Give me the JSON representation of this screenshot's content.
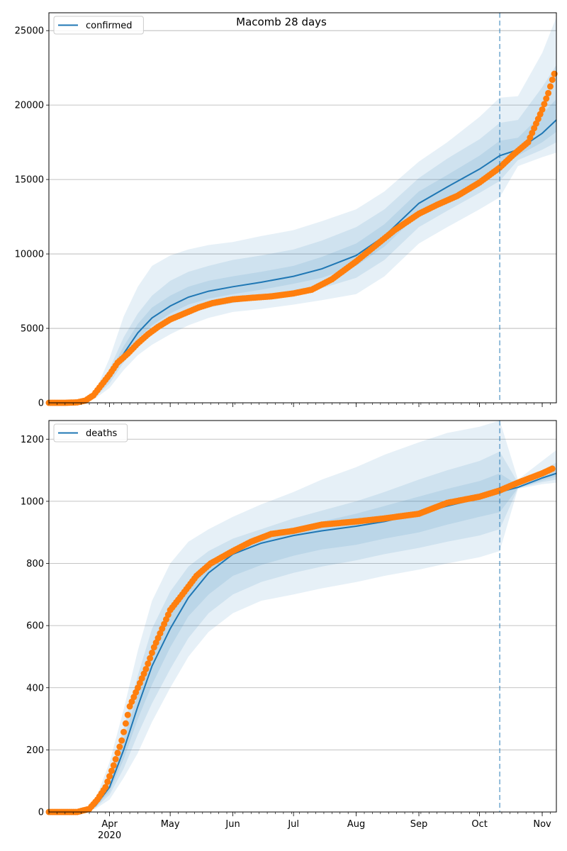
{
  "title": "Macomb 28 days",
  "colors": {
    "line": "#1f77b4",
    "band": "#1f77b4",
    "observed": "#ff7f0e",
    "grid": "#b0b0b0",
    "vline": "#1f77b4"
  },
  "chart_data": [
    {
      "type": "line",
      "panel": "top",
      "title": "Macomb 28 days",
      "legend": {
        "label": "confirmed",
        "position": "top-left"
      },
      "grid": "horizontal",
      "x_range": [
        "2020-03-02",
        "2020-11-08"
      ],
      "y_range": [
        0,
        26200
      ],
      "y_ticks": [
        0,
        5000,
        10000,
        15000,
        20000,
        25000
      ],
      "forecast_start": "2020-10-11",
      "model": {
        "name": "confirmed",
        "x": [
          "2020-03-02",
          "2020-03-15",
          "2020-03-20",
          "2020-03-25",
          "2020-04-01",
          "2020-04-08",
          "2020-04-15",
          "2020-04-22",
          "2020-05-01",
          "2020-05-10",
          "2020-05-20",
          "2020-06-01",
          "2020-06-15",
          "2020-07-01",
          "2020-07-15",
          "2020-08-01",
          "2020-08-15",
          "2020-09-01",
          "2020-09-15",
          "2020-10-01",
          "2020-10-11",
          "2020-10-20",
          "2020-11-01",
          "2020-11-08"
        ],
        "y": [
          0,
          40,
          150,
          500,
          1700,
          3300,
          4700,
          5700,
          6500,
          7100,
          7500,
          7800,
          8100,
          8500,
          9000,
          9900,
          11200,
          13400,
          14500,
          15700,
          16600,
          17000,
          18100,
          19000
        ]
      },
      "bands": [
        {
          "level": "outer",
          "lower": [
            0,
            30,
            100,
            300,
            1000,
            2200,
            3200,
            3900,
            4600,
            5200,
            5700,
            6100,
            6300,
            6600,
            6900,
            7300,
            8500,
            10700,
            11800,
            13000,
            13800,
            15900,
            16500,
            16800
          ],
          "upper": [
            0,
            60,
            250,
            800,
            3000,
            5800,
            7800,
            9200,
            9900,
            10300,
            10600,
            10800,
            11200,
            11600,
            12200,
            13000,
            14200,
            16200,
            17500,
            19200,
            20500,
            20600,
            23500,
            25900
          ]
        },
        {
          "level": "middle",
          "lower": [
            0,
            35,
            120,
            380,
            1300,
            2700,
            3900,
            4700,
            5400,
            6000,
            6400,
            6700,
            7000,
            7300,
            7700,
            8400,
            9600,
            11800,
            12900,
            14100,
            14900,
            16300,
            17000,
            17500
          ],
          "upper": [
            0,
            50,
            200,
            650,
            2300,
            4400,
            6000,
            7200,
            8200,
            8800,
            9200,
            9600,
            9900,
            10300,
            10900,
            11800,
            13000,
            15100,
            16400,
            17700,
            18800,
            19000,
            21200,
            22700
          ]
        },
        {
          "level": "inner",
          "lower": [
            0,
            38,
            135,
            440,
            1500,
            3000,
            4300,
            5200,
            6000,
            6600,
            7000,
            7300,
            7600,
            8000,
            8400,
            9200,
            10500,
            12700,
            13800,
            14900,
            15800,
            16600,
            17500,
            18200
          ],
          "upper": [
            0,
            45,
            175,
            580,
            2000,
            3800,
            5300,
            6400,
            7200,
            7800,
            8200,
            8500,
            8800,
            9200,
            9800,
            10700,
            12000,
            14200,
            15300,
            16600,
            17600,
            17800,
            19400,
            20400
          ]
        }
      ],
      "observed": {
        "x": [
          "2020-03-02",
          "2020-03-10",
          "2020-03-16",
          "2020-03-20",
          "2020-03-24",
          "2020-03-28",
          "2020-04-01",
          "2020-04-05",
          "2020-04-10",
          "2020-04-15",
          "2020-04-20",
          "2020-04-25",
          "2020-05-01",
          "2020-05-08",
          "2020-05-15",
          "2020-05-22",
          "2020-06-01",
          "2020-06-10",
          "2020-06-20",
          "2020-07-01",
          "2020-07-10",
          "2020-07-20",
          "2020-08-01",
          "2020-08-10",
          "2020-08-20",
          "2020-09-01",
          "2020-09-10",
          "2020-09-20",
          "2020-10-01",
          "2020-10-11",
          "2020-10-18",
          "2020-10-25",
          "2020-11-01",
          "2020-11-04",
          "2020-11-06",
          "2020-11-07"
        ],
        "y": [
          0,
          0,
          30,
          150,
          500,
          1200,
          1900,
          2700,
          3300,
          4000,
          4600,
          5100,
          5600,
          6000,
          6400,
          6700,
          6950,
          7050,
          7150,
          7350,
          7600,
          8300,
          9500,
          10500,
          11600,
          12700,
          13300,
          13900,
          14800,
          15800,
          16700,
          17500,
          19700,
          20800,
          21700,
          22100
        ]
      }
    },
    {
      "type": "line",
      "panel": "bottom",
      "legend": {
        "label": "deaths",
        "position": "top-left"
      },
      "grid": "horizontal",
      "x_range": [
        "2020-03-02",
        "2020-11-08"
      ],
      "y_range": [
        0,
        1260
      ],
      "y_ticks": [
        0,
        200,
        400,
        600,
        800,
        1000,
        1200
      ],
      "x_ticks": [
        "Apr",
        "May",
        "Jun",
        "Jul",
        "Aug",
        "Sep",
        "Oct",
        "Nov"
      ],
      "x_tick_dates": [
        "2020-04-01",
        "2020-05-01",
        "2020-06-01",
        "2020-07-01",
        "2020-08-01",
        "2020-09-01",
        "2020-10-01",
        "2020-11-01"
      ],
      "x_sublabel": "2020",
      "forecast_start": "2020-10-11",
      "model": {
        "name": "deaths",
        "x": [
          "2020-03-02",
          "2020-03-20",
          "2020-03-25",
          "2020-04-01",
          "2020-04-08",
          "2020-04-15",
          "2020-04-22",
          "2020-05-01",
          "2020-05-10",
          "2020-05-20",
          "2020-06-01",
          "2020-06-15",
          "2020-07-01",
          "2020-07-15",
          "2020-08-01",
          "2020-08-15",
          "2020-09-01",
          "2020-09-15",
          "2020-10-01",
          "2020-10-11",
          "2020-10-20",
          "2020-11-01",
          "2020-11-08"
        ],
        "y": [
          0,
          3,
          20,
          80,
          200,
          340,
          470,
          590,
          690,
          770,
          830,
          865,
          890,
          905,
          920,
          935,
          960,
          985,
          1010,
          1030,
          1045,
          1075,
          1090
        ]
      },
      "bands": [
        {
          "level": "outer",
          "lower": [
            0,
            2,
            10,
            40,
            110,
            190,
            290,
            400,
            500,
            580,
            640,
            680,
            700,
            720,
            740,
            760,
            780,
            800,
            820,
            840,
            1040,
            1055,
            1060
          ],
          "upper": [
            0,
            5,
            40,
            160,
            330,
            520,
            680,
            800,
            870,
            910,
            950,
            990,
            1030,
            1070,
            1110,
            1150,
            1190,
            1220,
            1240,
            1260,
            1070,
            1130,
            1165
          ]
        },
        {
          "level": "middle",
          "lower": [
            0,
            2,
            13,
            55,
            140,
            250,
            350,
            460,
            560,
            640,
            700,
            740,
            770,
            790,
            810,
            830,
            850,
            870,
            890,
            910,
            1042,
            1062,
            1070
          ],
          "upper": [
            0,
            4,
            32,
            120,
            270,
            440,
            590,
            710,
            790,
            840,
            880,
            910,
            945,
            970,
            1000,
            1030,
            1070,
            1100,
            1130,
            1160,
            1060,
            1100,
            1125
          ]
        },
        {
          "level": "inner",
          "lower": [
            0,
            2,
            16,
            65,
            170,
            300,
            410,
            530,
            630,
            700,
            760,
            795,
            825,
            845,
            860,
            880,
            900,
            925,
            950,
            965,
            1043,
            1067,
            1080
          ],
          "upper": [
            0,
            3,
            25,
            100,
            235,
            380,
            520,
            640,
            740,
            800,
            850,
            885,
            915,
            935,
            960,
            985,
            1015,
            1040,
            1065,
            1090,
            1052,
            1085,
            1105
          ]
        }
      ],
      "observed": {
        "x": [
          "2020-03-02",
          "2020-03-16",
          "2020-03-22",
          "2020-03-26",
          "2020-03-30",
          "2020-04-03",
          "2020-04-07",
          "2020-04-11",
          "2020-04-15",
          "2020-04-19",
          "2020-04-23",
          "2020-04-27",
          "2020-05-01",
          "2020-05-07",
          "2020-05-14",
          "2020-05-21",
          "2020-06-01",
          "2020-06-10",
          "2020-06-20",
          "2020-07-01",
          "2020-07-15",
          "2020-08-01",
          "2020-08-15",
          "2020-09-01",
          "2020-09-15",
          "2020-10-01",
          "2020-10-11",
          "2020-10-20",
          "2020-11-01",
          "2020-11-06"
        ],
        "y": [
          0,
          0,
          10,
          40,
          80,
          150,
          230,
          340,
          400,
          460,
          530,
          590,
          650,
          700,
          760,
          800,
          840,
          870,
          895,
          905,
          925,
          935,
          945,
          960,
          995,
          1015,
          1035,
          1060,
          1090,
          1105
        ]
      }
    }
  ]
}
